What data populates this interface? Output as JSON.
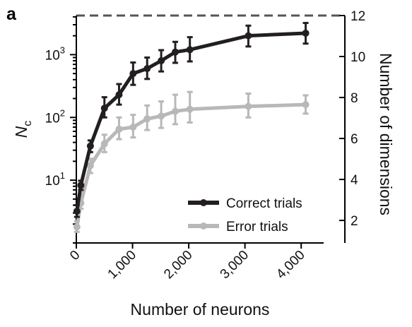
{
  "panel_label": "a",
  "chart_data": {
    "type": "line",
    "xlabel": "Number of neurons",
    "ylabel_main": "N",
    "ylabel_sub": "c",
    "ylabel_right": "Number of dimensions",
    "x_range": [
      0,
      4400
    ],
    "x_ticks": [
      0,
      1000,
      2000,
      3000,
      4000
    ],
    "x_tick_labels": [
      "0",
      "1,000",
      "2,000",
      "3,000",
      "4,000"
    ],
    "y_left_scale": "log",
    "y_left_range": [
      1,
      4200
    ],
    "y_left_ticks": [
      10,
      100,
      1000
    ],
    "y_left_tick_labels": [
      {
        "base": "10",
        "exp": "1"
      },
      {
        "base": "10",
        "exp": "2"
      },
      {
        "base": "10",
        "exp": "3"
      }
    ],
    "y_right_range": [
      0.9,
      12
    ],
    "y_right_ticks": [
      2,
      4,
      6,
      8,
      10,
      12
    ],
    "y_right_tick_labels": [
      "2",
      "4",
      "6",
      "8",
      "10",
      "12"
    ],
    "reference_line_right": 12,
    "legend_position": "lower-right",
    "grid": false,
    "series": [
      {
        "name": "Correct trials",
        "color": "#231f20",
        "x": [
          10,
          80,
          250,
          500,
          760,
          1010,
          1260,
          1510,
          1760,
          2020,
          3060,
          4080
        ],
        "y": [
          3.2,
          8.3,
          35,
          140,
          230,
          500,
          600,
          800,
          1100,
          1200,
          2000,
          2200
        ],
        "err_low": [
          2.6,
          7.0,
          28,
          100,
          160,
          330,
          410,
          540,
          740,
          780,
          1350,
          1500
        ],
        "err_high": [
          4.0,
          9.8,
          43,
          210,
          340,
          750,
          900,
          1180,
          1600,
          1900,
          2900,
          3200
        ]
      },
      {
        "name": "Error trials",
        "color": "#b8b8b8",
        "x": [
          10,
          80,
          250,
          500,
          760,
          1010,
          1260,
          1510,
          1760,
          2020,
          3060,
          4080
        ],
        "y": [
          1.8,
          4.3,
          17,
          38,
          65,
          70,
          95,
          105,
          125,
          135,
          150,
          160
        ],
        "err_low": [
          1.5,
          3.5,
          13,
          28,
          45,
          48,
          63,
          68,
          78,
          83,
          100,
          115
        ],
        "err_high": [
          2.2,
          5.2,
          22,
          53,
          100,
          110,
          155,
          180,
          230,
          255,
          240,
          225
        ]
      }
    ]
  }
}
